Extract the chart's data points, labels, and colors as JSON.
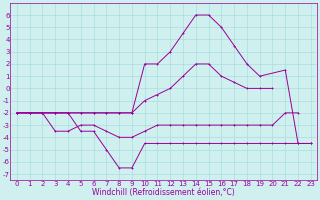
{
  "xlabel": "Windchill (Refroidissement éolien,°C)",
  "bg_color": "#cff0ee",
  "grid_color": "#aadddd",
  "line_color": "#990099",
  "hours": [
    0,
    1,
    2,
    3,
    4,
    5,
    6,
    7,
    8,
    9,
    10,
    11,
    12,
    13,
    14,
    15,
    16,
    17,
    18,
    19,
    20,
    21,
    22,
    23
  ],
  "series1": [
    -2,
    -2,
    -2,
    -2,
    -2,
    -3.5,
    -3.5,
    -5,
    -6.5,
    -6.5,
    -4.5,
    -4.5,
    -4.5,
    -4.5,
    -4.5,
    -4.5,
    -4.5,
    -4.5,
    -4.5,
    -4.5,
    -4.5,
    -4.5,
    -4.5,
    -4.5
  ],
  "series2": [
    -2,
    -2,
    -2,
    -3.5,
    -3.5,
    -3,
    -3,
    -3.5,
    -4,
    -4,
    -3.5,
    -3,
    -3,
    -3,
    -3,
    -3,
    -3,
    -3,
    -3,
    -3,
    -3,
    -2,
    -2,
    null
  ],
  "series3": [
    -2,
    -2,
    -2,
    -2,
    -2,
    -2,
    -2,
    -2,
    -2,
    -2,
    -1,
    -0.5,
    0,
    1,
    2,
    2,
    1,
    0.5,
    0,
    0,
    0,
    null,
    null,
    null
  ],
  "series4": [
    -2,
    -2,
    -2,
    -2,
    -2,
    -2,
    -2,
    -2,
    -2,
    -2,
    2,
    2,
    3,
    4.5,
    6,
    6,
    5,
    3.5,
    2,
    1,
    null,
    1.5,
    -4.5,
    -4.5
  ],
  "xlim": [
    -0.5,
    23.5
  ],
  "ylim": [
    -7.5,
    7
  ],
  "yticks": [
    -7,
    -6,
    -5,
    -4,
    -3,
    -2,
    -1,
    0,
    1,
    2,
    3,
    4,
    5,
    6
  ],
  "xticks": [
    0,
    1,
    2,
    3,
    4,
    5,
    6,
    7,
    8,
    9,
    10,
    11,
    12,
    13,
    14,
    15,
    16,
    17,
    18,
    19,
    20,
    21,
    22,
    23
  ],
  "tick_fontsize": 5,
  "xlabel_fontsize": 5.5,
  "lw": 0.7,
  "ms": 2.0
}
